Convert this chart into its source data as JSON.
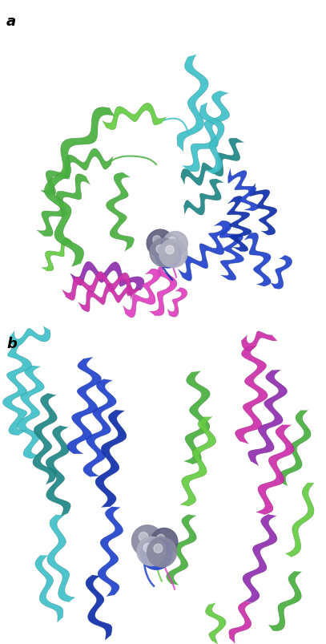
{
  "fig_width": 4.07,
  "fig_height": 8.04,
  "dpi": 100,
  "background_color": "#ffffff",
  "label_a": "a",
  "label_b": "b",
  "label_fontsize": 13,
  "label_fontweight": "bold",
  "colors": {
    "green": "#4ab040",
    "lime": "#66cc44",
    "cyan": "#40c0c8",
    "teal": "#208888",
    "blue": "#2244cc",
    "dark_blue": "#1030aa",
    "purple": "#9030b0",
    "magenta": "#cc30aa",
    "hot_pink": "#e040c0",
    "gray_dark": "#606080",
    "gray_mid": "#8888a0",
    "gray_light": "#b0b0c0",
    "white": "#ffffff"
  }
}
